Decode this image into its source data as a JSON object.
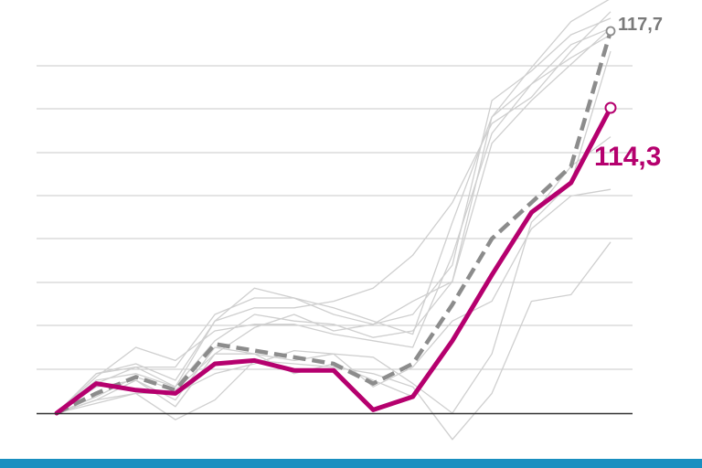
{
  "chart_data": {
    "type": "line",
    "x": [
      0,
      1,
      2,
      3,
      4,
      5,
      6,
      7,
      8,
      9,
      10,
      11,
      12,
      13,
      14
    ],
    "ylim": [
      0,
      120
    ],
    "grid": true,
    "series": [
      {
        "role": "background",
        "values": [
          0,
          8,
          10,
          4,
          20,
          18,
          12,
          15,
          10,
          5,
          22,
          42,
          60,
          75,
          84
        ]
      },
      {
        "role": "background",
        "values": [
          0,
          5,
          11,
          7,
          18,
          26,
          30,
          25,
          27,
          34,
          40,
          82,
          95,
          106,
          117
        ]
      },
      {
        "role": "background",
        "values": [
          0,
          12,
          15,
          10,
          28,
          38,
          35,
          30,
          27,
          30,
          45,
          95,
          104,
          115,
          120
        ]
      },
      {
        "role": "background",
        "values": [
          0,
          12,
          14,
          8,
          22,
          30,
          28,
          27,
          23,
          25,
          40,
          90,
          100,
          112,
          117
        ]
      },
      {
        "role": "background",
        "values": [
          0,
          4,
          6,
          6,
          12,
          15,
          19,
          18,
          17,
          9,
          0,
          18,
          58,
          70,
          110
        ]
      },
      {
        "role": "background",
        "values": [
          0,
          10,
          12,
          8,
          28,
          32,
          32,
          34,
          38,
          48,
          64,
          88,
          96,
          110,
          122
        ]
      },
      {
        "role": "background",
        "values": [
          0,
          9,
          14,
          14,
          30,
          35,
          35,
          32,
          28,
          24,
          58,
          90,
          105,
          119,
          126
        ]
      },
      {
        "role": "background",
        "values": [
          0,
          11,
          20,
          16,
          25,
          27,
          27,
          24,
          22,
          20,
          48,
          85,
          100,
          108,
          115
        ]
      },
      {
        "role": "background",
        "values": [
          0,
          4,
          10,
          2,
          18,
          18,
          16,
          18,
          8,
          14,
          28,
          34,
          56,
          66,
          68
        ]
      },
      {
        "role": "background",
        "values": [
          0,
          3,
          6,
          -2,
          4,
          16,
          15,
          14,
          12,
          8,
          -8,
          6,
          34,
          36,
          52
        ]
      },
      {
        "role": "dashed",
        "values": [
          0,
          6,
          11,
          7,
          21,
          19,
          17,
          15,
          9,
          15,
          33,
          53,
          64,
          75,
          88
        ],
        "end_label": "117,7"
      },
      {
        "role": "highlight",
        "values": [
          0,
          9,
          7,
          6,
          15,
          16,
          13,
          13,
          1,
          5,
          22,
          42,
          61,
          70,
          86
        ],
        "end_label": "114,3"
      }
    ],
    "colors": {
      "highlight": "#b5006e",
      "dashed": "#8c8c8c",
      "background": "#cfcfcf",
      "grid": "#c8c8c8",
      "baseline": "#333333",
      "bottom_bar": "#1a8fc0"
    }
  }
}
